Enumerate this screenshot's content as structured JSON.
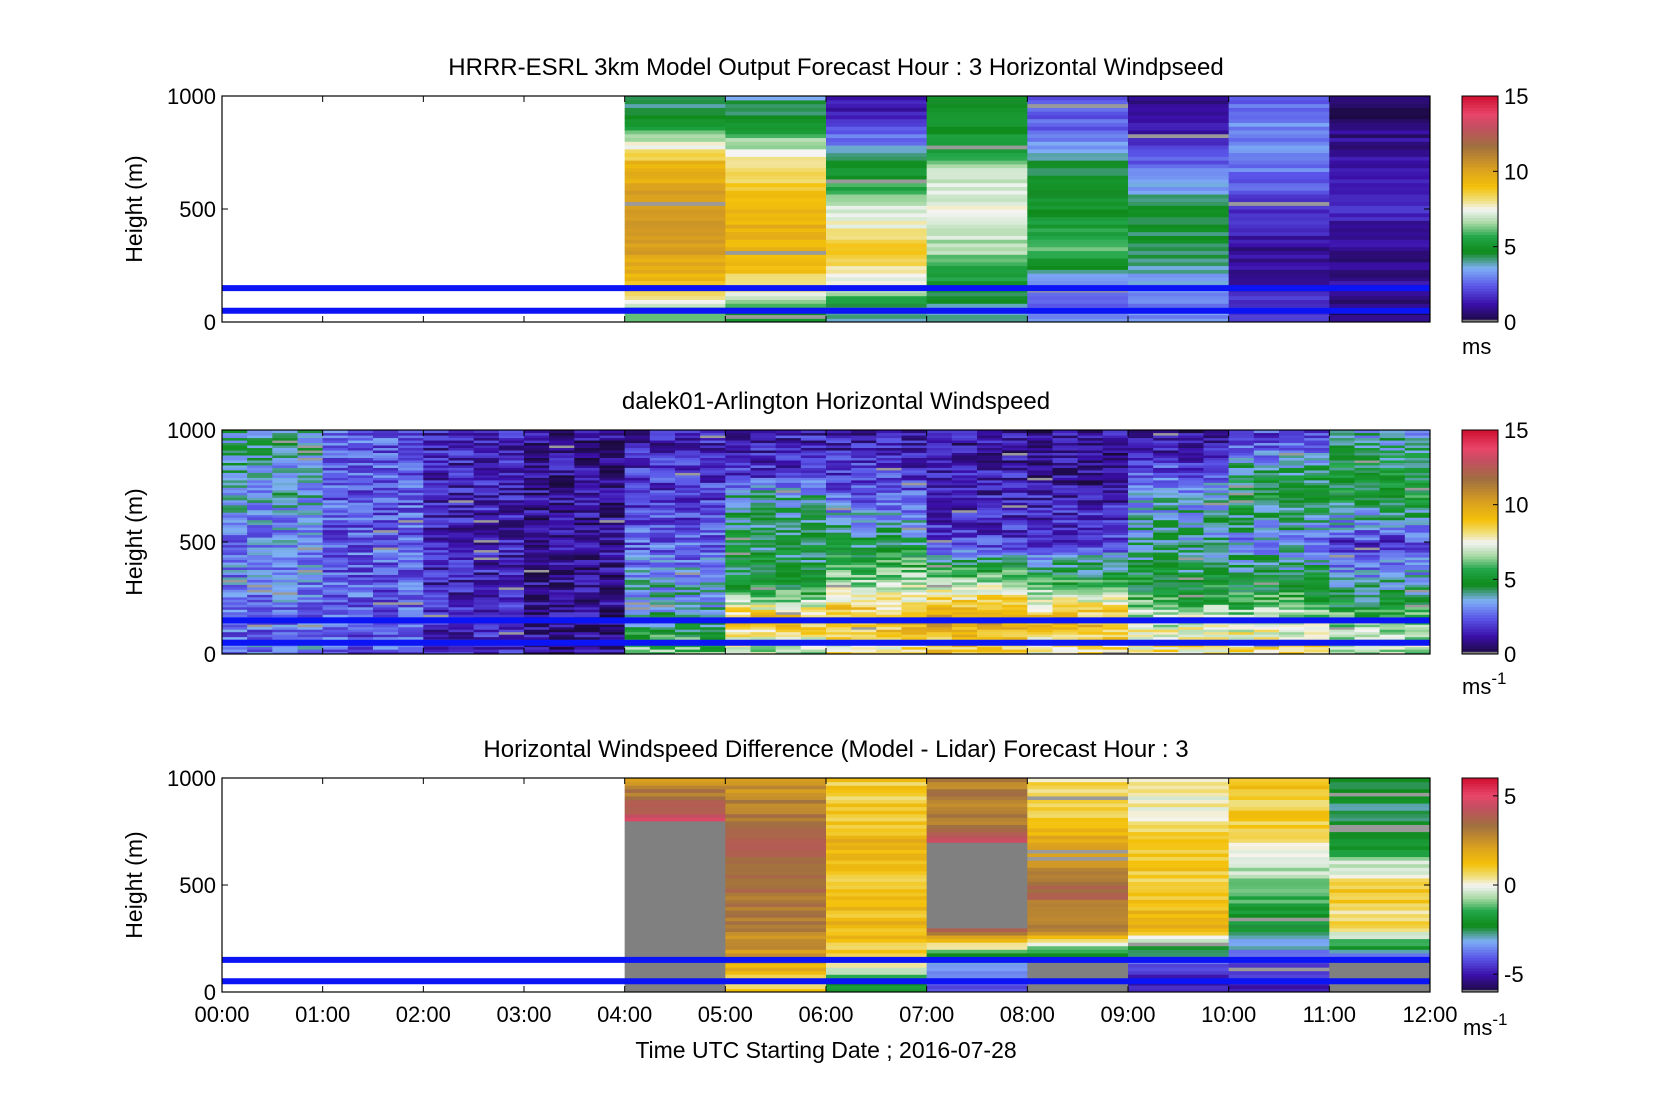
{
  "figure": {
    "xlabel": "Time UTC  Starting Date ; 2016-07-28",
    "x_tick_labels": [
      "00:00",
      "01:00",
      "02:00",
      "03:00",
      "04:00",
      "05:00",
      "06:00",
      "07:00",
      "08:00",
      "09:00",
      "10:00",
      "11:00",
      "12:00"
    ],
    "reference_line_color": "#0a14f5",
    "reference_heights_m": [
      150,
      50
    ]
  },
  "chart_data": [
    {
      "type": "heatmap",
      "title": "HRRR-ESRL 3km Model Output   Forecast Hour : 3 Horizontal Windpseed",
      "ylabel": "Height (m)",
      "xlim_hours": [
        0,
        12
      ],
      "ylim": [
        0,
        1000
      ],
      "y_tick_labels": [
        "1000",
        "500",
        "0"
      ],
      "colorbar": {
        "range": [
          0,
          15
        ],
        "tick_labels": [
          "15",
          "10",
          "5",
          "0"
        ],
        "unit": "ms",
        "unit_superscript": ""
      },
      "data_start_hour": 4,
      "approx_profiles": [
        {
          "hour": 4,
          "values_by_height": {
            "50": 6,
            "150": 9,
            "300": 10,
            "500": 10.5,
            "700": 9.5,
            "800": 7,
            "900": 5,
            "1000": 4
          }
        },
        {
          "hour": 5,
          "values_by_height": {
            "50": 5,
            "150": 8,
            "300": 9.5,
            "500": 9.5,
            "700": 8,
            "800": 6.5,
            "900": 4.5,
            "1000": 4
          }
        },
        {
          "hour": 6,
          "values_by_height": {
            "50": 4,
            "150": 7,
            "300": 9,
            "500": 7,
            "700": 4.5,
            "800": 3,
            "900": 1.5,
            "1000": 1.5
          }
        },
        {
          "hour": 7,
          "values_by_height": {
            "50": 4,
            "150": 5,
            "300": 6.5,
            "500": 7.5,
            "700": 6.5,
            "800": 5,
            "900": 5,
            "1000": 4.5
          }
        },
        {
          "hour": 8,
          "values_by_height": {
            "50": 3,
            "150": 2.5,
            "300": 6,
            "500": 5,
            "700": 4.5,
            "800": 3,
            "900": 2.5,
            "1000": 2
          }
        },
        {
          "hour": 9,
          "values_by_height": {
            "50": 3,
            "150": 3,
            "300": 4.5,
            "500": 4.5,
            "700": 2.5,
            "800": 1.5,
            "900": 1.5,
            "1000": 1
          }
        },
        {
          "hour": 10,
          "values_by_height": {
            "50": 2,
            "150": 1.5,
            "300": 1,
            "500": 2,
            "700": 3,
            "800": 3,
            "900": 3,
            "1000": 2.5
          }
        },
        {
          "hour": 11,
          "values_by_height": {
            "50": 0.5,
            "150": 1,
            "300": 1,
            "500": 1.5,
            "700": 1,
            "800": 1,
            "900": 0.5,
            "1000": 0.5
          }
        }
      ]
    },
    {
      "type": "heatmap",
      "title": "dalek01-Arlington  Horizontal Windspeed",
      "ylabel": "Height (m)",
      "xlim_hours": [
        0,
        12
      ],
      "ylim": [
        0,
        1000
      ],
      "y_tick_labels": [
        "1000",
        "500",
        "0"
      ],
      "colorbar": {
        "range": [
          0,
          15
        ],
        "tick_labels": [
          "15",
          "10",
          "5",
          "0"
        ],
        "unit": "ms",
        "unit_superscript": "-1"
      },
      "data_start_hour": 0,
      "approx_profiles": [
        {
          "hour": 0,
          "values_by_height": {
            "50": 3,
            "150": 2.5,
            "300": 3,
            "500": 3,
            "700": 3.5,
            "800": 3.5,
            "900": 4,
            "1000": 4
          }
        },
        {
          "hour": 1,
          "values_by_height": {
            "50": 2.5,
            "150": 2.5,
            "300": 2.5,
            "500": 2.5,
            "700": 2.5,
            "800": 2.5,
            "900": 2.5,
            "1000": 2.5
          }
        },
        {
          "hour": 2,
          "values_by_height": {
            "50": 1.5,
            "150": 1.5,
            "300": 1.5,
            "500": 1.5,
            "700": 1.5,
            "800": 1.5,
            "900": 1.5,
            "1000": 1.5
          }
        },
        {
          "hour": 3,
          "values_by_height": {
            "50": 1,
            "150": 1,
            "300": 1,
            "500": 1,
            "700": 1,
            "800": 1,
            "900": 1,
            "1000": 1
          }
        },
        {
          "hour": 4,
          "values_by_height": {
            "50": 6,
            "150": 4,
            "300": 3.5,
            "500": 2.5,
            "700": 2,
            "800": 2,
            "900": 1.5,
            "1000": 1.5
          }
        },
        {
          "hour": 5,
          "values_by_height": {
            "50": 7,
            "150": 9.5,
            "300": 5,
            "500": 4.5,
            "700": 4,
            "800": 2,
            "900": 1.5,
            "1000": 1.5
          }
        },
        {
          "hour": 6,
          "values_by_height": {
            "50": 8,
            "150": 9.5,
            "300": 7,
            "500": 4.5,
            "700": 2.5,
            "800": 2,
            "900": 1.5,
            "1000": 1.5
          }
        },
        {
          "hour": 7,
          "values_by_height": {
            "50": 9,
            "150": 10,
            "300": 7.5,
            "500": 2,
            "700": 1.5,
            "800": 1.5,
            "900": 1,
            "1000": 1.5
          }
        },
        {
          "hour": 8,
          "values_by_height": {
            "50": 8,
            "150": 9.5,
            "300": 6,
            "500": 2,
            "700": 1.5,
            "800": 1,
            "900": 1,
            "1000": 1
          }
        },
        {
          "hour": 9,
          "values_by_height": {
            "50": 8,
            "150": 7,
            "300": 5,
            "500": 4,
            "700": 3.5,
            "800": 2.5,
            "900": 1.5,
            "1000": 1
          }
        },
        {
          "hour": 10,
          "values_by_height": {
            "50": 8,
            "150": 7,
            "300": 5,
            "500": 3,
            "700": 5,
            "800": 4.5,
            "900": 3,
            "1000": 2
          }
        },
        {
          "hour": 11,
          "values_by_height": {
            "50": 7,
            "150": 6,
            "300": 4,
            "500": 2,
            "700": 5,
            "800": 5,
            "900": 4.5,
            "1000": 3.5
          }
        }
      ]
    },
    {
      "type": "heatmap",
      "title": "Horizontal Windspeed Difference (Model - Lidar) Forecast Hour : 3",
      "ylabel": "Height (m)",
      "xlim_hours": [
        0,
        12
      ],
      "ylim": [
        0,
        1000
      ],
      "y_tick_labels": [
        "1000",
        "500",
        "0"
      ],
      "colorbar": {
        "range": [
          -6,
          6
        ],
        "tick_labels": [
          "5",
          "0",
          "-5"
        ],
        "unit": "ms",
        "unit_superscript": "-1"
      },
      "data_start_hour": 4,
      "approx_profiles": [
        {
          "hour": 4,
          "values_by_height": {
            "50": null,
            "150": null,
            "300": null,
            "500": null,
            "700": null,
            "800": 5,
            "900": 3.5,
            "1000": 2.5
          }
        },
        {
          "hour": 5,
          "values_by_height": {
            "50": 1,
            "150": 2,
            "300": 3,
            "500": 3.5,
            "700": 4,
            "800": 3,
            "900": 3,
            "1000": 2
          }
        },
        {
          "hour": 6,
          "values_by_height": {
            "50": -2,
            "150": 0.5,
            "300": 1.5,
            "500": 1,
            "700": 1.5,
            "800": 1,
            "900": 1,
            "1000": 1
          }
        },
        {
          "hour": 7,
          "values_by_height": {
            "50": -4,
            "150": -3,
            "300": 4.5,
            "500": null,
            "700": 5,
            "800": 3,
            "900": 3,
            "1000": 3
          }
        },
        {
          "hour": 8,
          "values_by_height": {
            "50": null,
            "150": -3,
            "300": 3,
            "500": 3.5,
            "700": 2,
            "800": 1,
            "900": 1,
            "1000": 0.5
          }
        },
        {
          "hour": 9,
          "values_by_height": {
            "50": -5,
            "150": -4,
            "300": 1.5,
            "500": 1,
            "700": 1,
            "800": 0.5,
            "900": 0,
            "1000": 0.5
          }
        },
        {
          "hour": 10,
          "values_by_height": {
            "50": -5,
            "150": -4,
            "300": -2,
            "500": -1,
            "700": 0.5,
            "800": 1,
            "900": 1,
            "1000": 1
          }
        },
        {
          "hour": 11,
          "values_by_height": {
            "50": null,
            "150": -4,
            "300": 0.5,
            "500": 1,
            "700": -2,
            "800": -2.5,
            "900": -2.5,
            "1000": -2.5
          }
        }
      ]
    }
  ]
}
